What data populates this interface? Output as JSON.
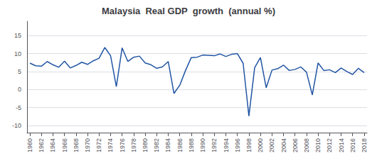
{
  "chart_data": {
    "type": "line",
    "title": "Malaysia  Real GDP  growth  (annual %)",
    "x": [
      1960,
      1961,
      1962,
      1963,
      1964,
      1965,
      1966,
      1967,
      1968,
      1969,
      1970,
      1971,
      1972,
      1973,
      1974,
      1975,
      1976,
      1977,
      1978,
      1979,
      1980,
      1981,
      1982,
      1983,
      1984,
      1985,
      1986,
      1987,
      1988,
      1989,
      1990,
      1991,
      1992,
      1993,
      1994,
      1995,
      1996,
      1997,
      1998,
      1999,
      2000,
      2001,
      2002,
      2003,
      2004,
      2005,
      2006,
      2007,
      2008,
      2009,
      2010,
      2011,
      2012,
      2013,
      2014,
      2015,
      2016,
      2017,
      2018
    ],
    "values": [
      7.35,
      6.6,
      6.5,
      7.8,
      6.9,
      6.2,
      7.9,
      6.0,
      6.7,
      7.6,
      7.0,
      8.0,
      8.7,
      11.7,
      9.4,
      0.8,
      11.6,
      7.8,
      9.0,
      9.3,
      7.4,
      6.9,
      5.9,
      6.3,
      7.8,
      -1.1,
      1.2,
      5.3,
      8.9,
      9.0,
      9.6,
      9.5,
      9.4,
      9.9,
      9.2,
      9.8,
      10.0,
      7.3,
      -7.4,
      6.1,
      8.9,
      0.5,
      5.4,
      5.8,
      6.8,
      5.3,
      5.6,
      6.3,
      4.8,
      -1.5,
      7.4,
      5.3,
      5.5,
      4.7,
      6.0,
      5.0,
      4.2,
      5.9,
      4.7
    ],
    "color": "#2155A3",
    "xlim": [
      1959.5,
      2018.5
    ],
    "xticks": [
      1960,
      1962,
      1964,
      1966,
      1968,
      1970,
      1972,
      1974,
      1976,
      1978,
      1980,
      1982,
      1984,
      1986,
      1988,
      1990,
      1992,
      1994,
      1996,
      1998,
      2000,
      2002,
      2004,
      2006,
      2008,
      2010,
      2012,
      2014,
      2016,
      2018
    ],
    "ylim": [
      -12,
      19
    ],
    "yticks": [
      -10,
      -5,
      0,
      5,
      10,
      15
    ],
    "grid": true
  }
}
